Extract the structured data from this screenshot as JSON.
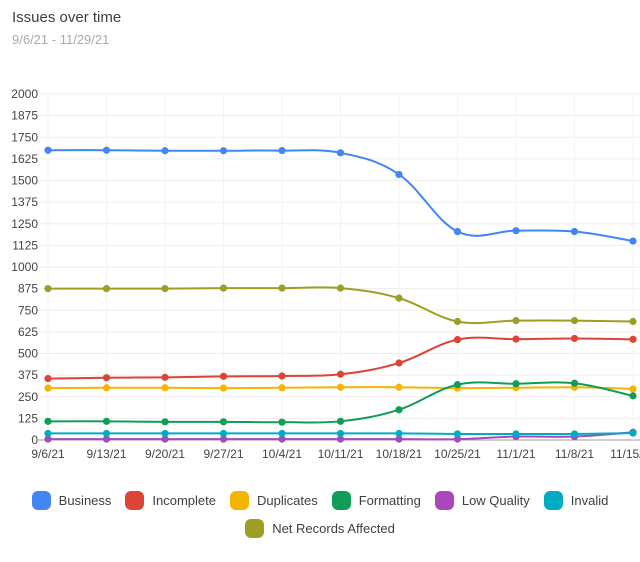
{
  "header": {
    "title": "Issues over time",
    "subtitle": "9/6/21 - 11/29/21"
  },
  "chart_data": {
    "type": "line",
    "title": "Issues over time",
    "subtitle": "9/6/21 - 11/29/21",
    "categories": [
      "9/6/21",
      "9/13/21",
      "9/20/21",
      "9/27/21",
      "10/4/21",
      "10/11/21",
      "10/18/21",
      "10/25/21",
      "11/1/21",
      "11/8/21",
      "11/15/21"
    ],
    "ylim": [
      0,
      2000
    ],
    "yticks": [
      0,
      125,
      250,
      375,
      500,
      625,
      750,
      875,
      1000,
      1125,
      1250,
      1375,
      1500,
      1625,
      1750,
      1875,
      2000
    ],
    "grid": true,
    "legend_position": "bottom",
    "series": [
      {
        "name": "Business",
        "color": "#4285f4",
        "values": [
          1675,
          1675,
          1672,
          1672,
          1673,
          1660,
          1535,
          1205,
          1210,
          1205,
          1150
        ]
      },
      {
        "name": "Incomplete",
        "color": "#db4437",
        "values": [
          355,
          360,
          362,
          368,
          370,
          380,
          445,
          580,
          583,
          587,
          582
        ]
      },
      {
        "name": "Duplicates",
        "color": "#f4b400",
        "values": [
          300,
          302,
          302,
          300,
          302,
          305,
          305,
          300,
          302,
          305,
          295
        ]
      },
      {
        "name": "Formatting",
        "color": "#0f9d58",
        "values": [
          108,
          108,
          105,
          105,
          103,
          108,
          175,
          320,
          325,
          328,
          255
        ]
      },
      {
        "name": "Low Quality",
        "color": "#ab47bc",
        "values": [
          5,
          5,
          5,
          5,
          5,
          5,
          5,
          5,
          20,
          20,
          45
        ]
      },
      {
        "name": "Invalid",
        "color": "#00acc1",
        "values": [
          38,
          38,
          38,
          38,
          38,
          38,
          38,
          35,
          35,
          35,
          40
        ]
      },
      {
        "name": "Net Records Affected",
        "color": "#9e9d24",
        "values": [
          875,
          875,
          875,
          878,
          878,
          878,
          820,
          685,
          690,
          690,
          685
        ]
      }
    ]
  }
}
